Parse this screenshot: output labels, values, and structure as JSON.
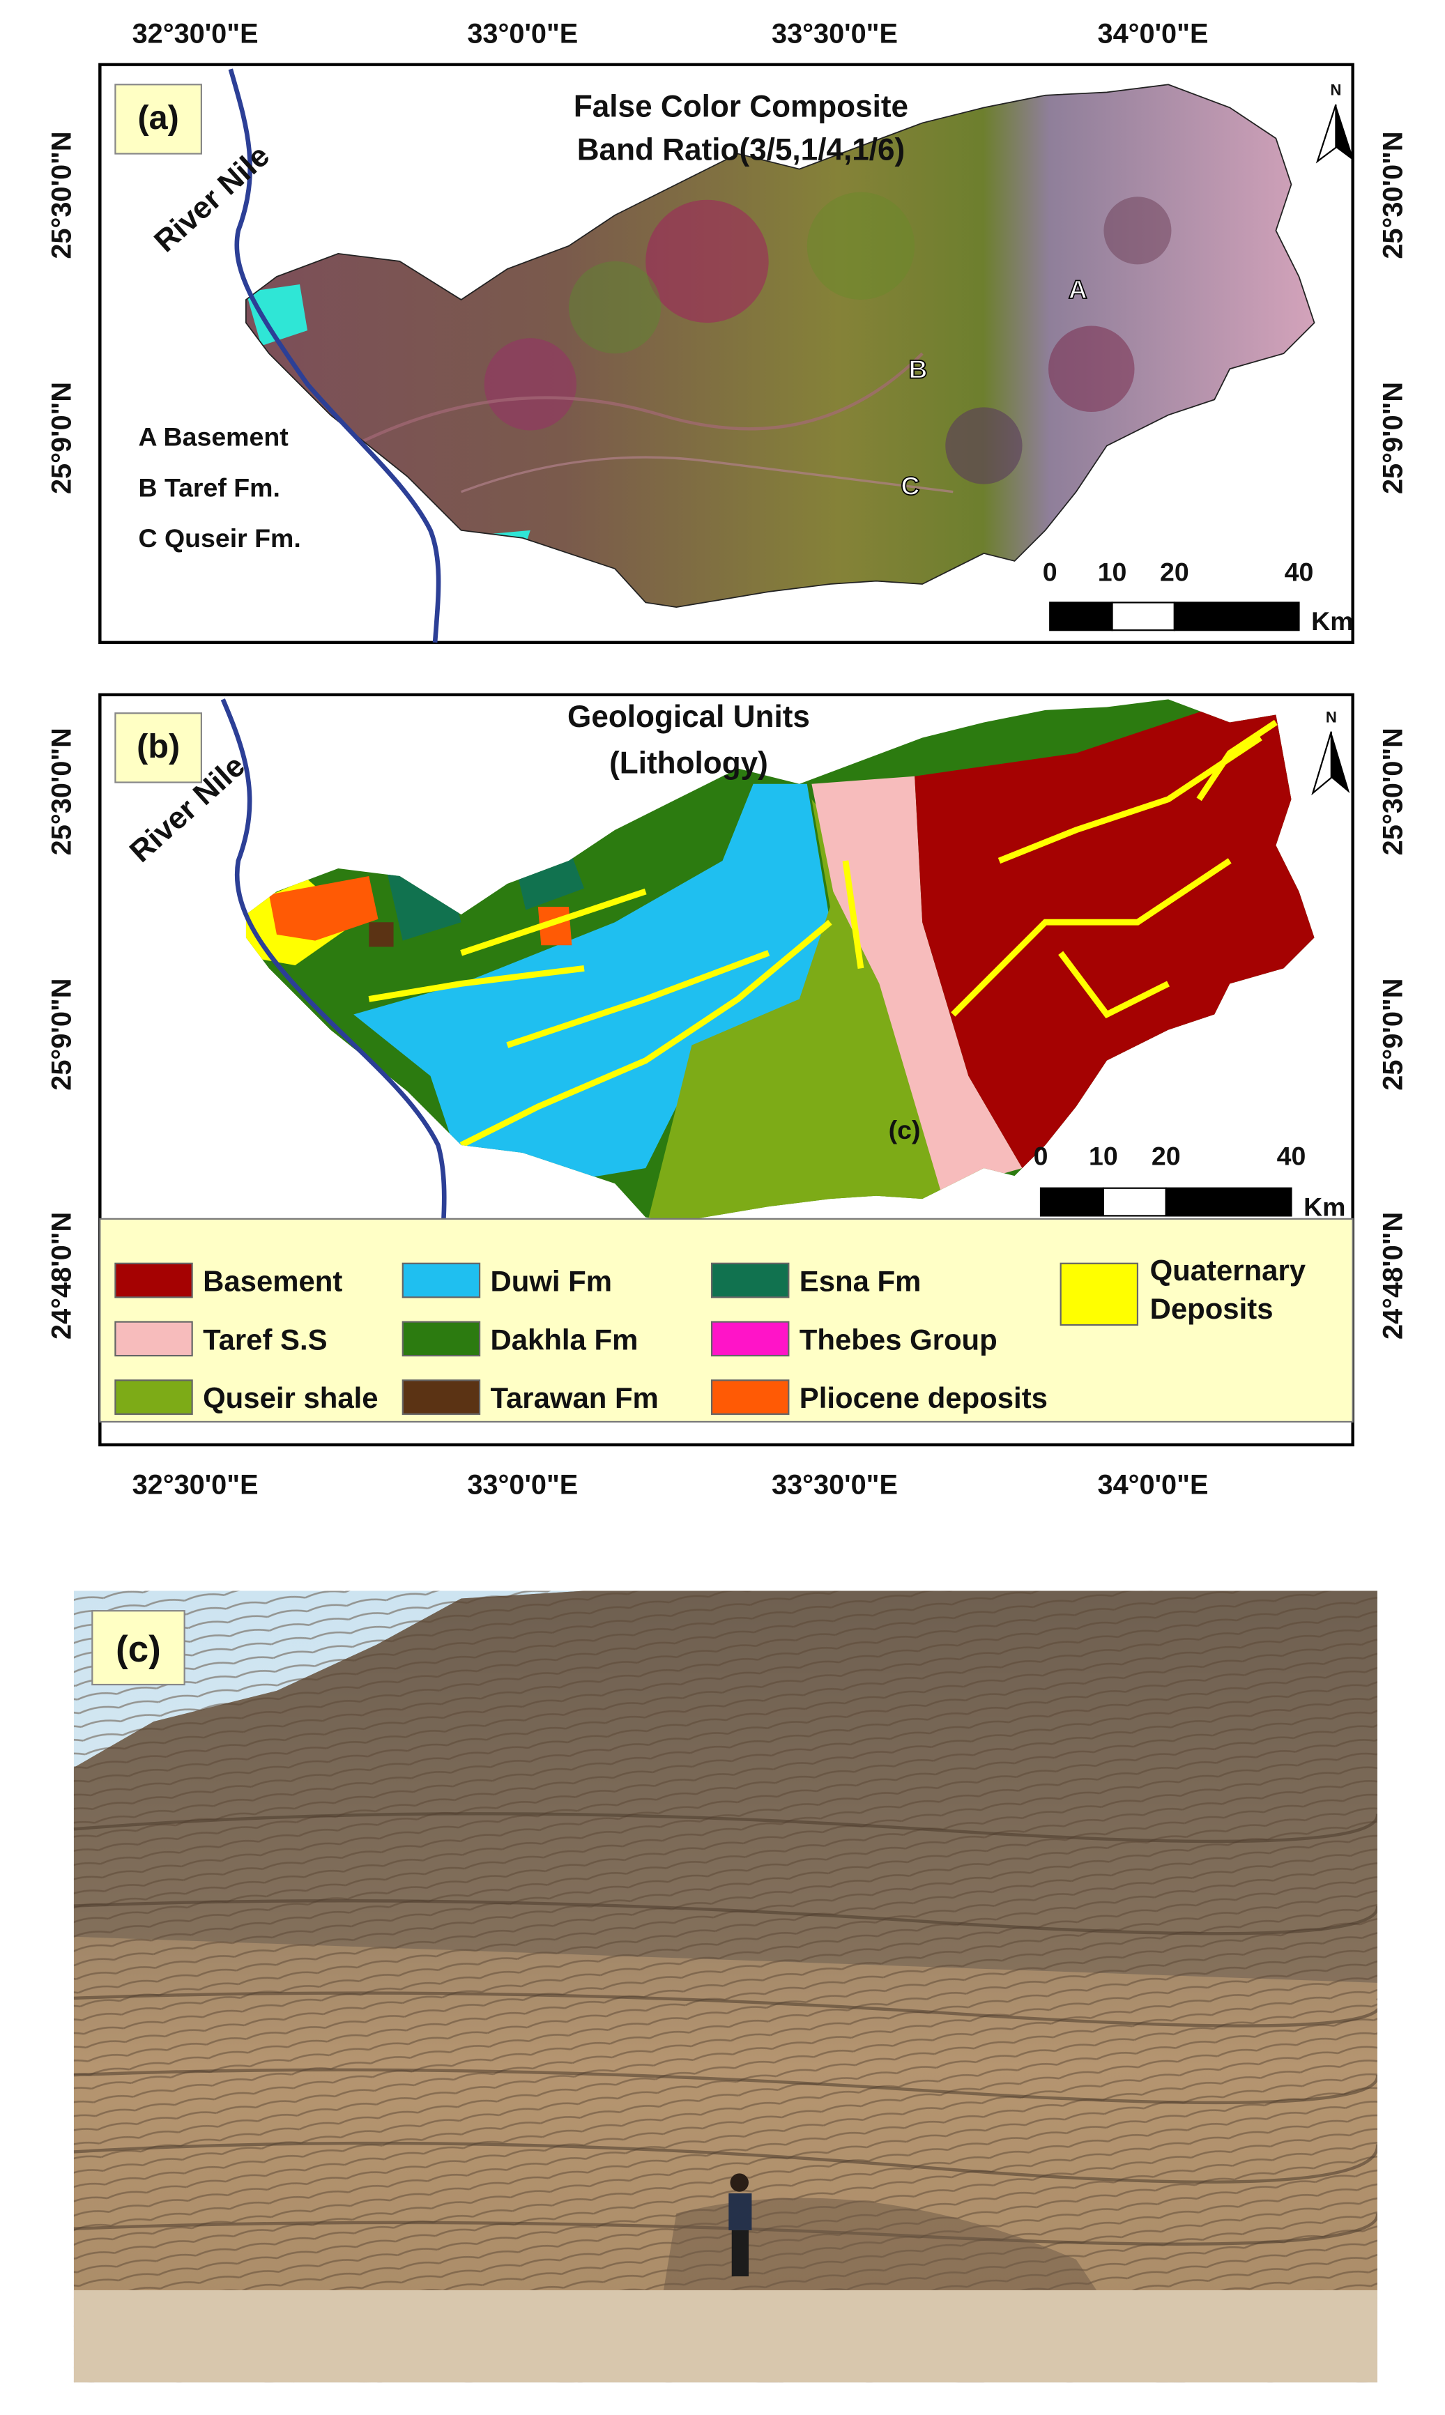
{
  "longitude_labels": [
    "32°30'0\"E",
    "33°0'0\"E",
    "33°30'0\"E",
    "34°0'0\"E"
  ],
  "latitude_labels": [
    "25°30'0\"N",
    "25°9'0\"N",
    "24°48'0\"N"
  ],
  "north_label": "N",
  "river_label": "River Nile",
  "scale_bar": {
    "ticks": [
      0,
      10,
      20,
      40
    ],
    "unit": "Km"
  },
  "panel_a": {
    "label": "(a)",
    "title": [
      "False Color Composite",
      "Band Ratio(3/5,1/4,1/6)"
    ],
    "annotations": [
      "A Basement",
      "B Taref Fm.",
      "C Quseir Fm."
    ],
    "markers": [
      "A",
      "B",
      "C"
    ]
  },
  "panel_b": {
    "label": "(b)",
    "title": [
      "Geological Units",
      "(Lithology)"
    ],
    "site_label": "(c)",
    "legend": [
      {
        "label": "Basement",
        "color": "#a50202"
      },
      {
        "label": "Taref S.S",
        "color": "#f7bcbc"
      },
      {
        "label": "Quseir shale",
        "color": "#7dab17"
      },
      {
        "label": "Duwi Fm",
        "color": "#1fbff0"
      },
      {
        "label": "Dakhla Fm",
        "color": "#2c7b10"
      },
      {
        "label": "Tarawan Fm",
        "color": "#5b3314"
      },
      {
        "label": "Esna Fm",
        "color": "#11724f"
      },
      {
        "label": "Thebes Group",
        "color": "#ff14c8"
      },
      {
        "label": "Pliocene deposits",
        "color": "#ff5a05"
      },
      {
        "label": [
          "Quaternary",
          "Deposits"
        ],
        "color": "#ffff00"
      }
    ]
  },
  "panel_c": {
    "label": "(c)"
  }
}
